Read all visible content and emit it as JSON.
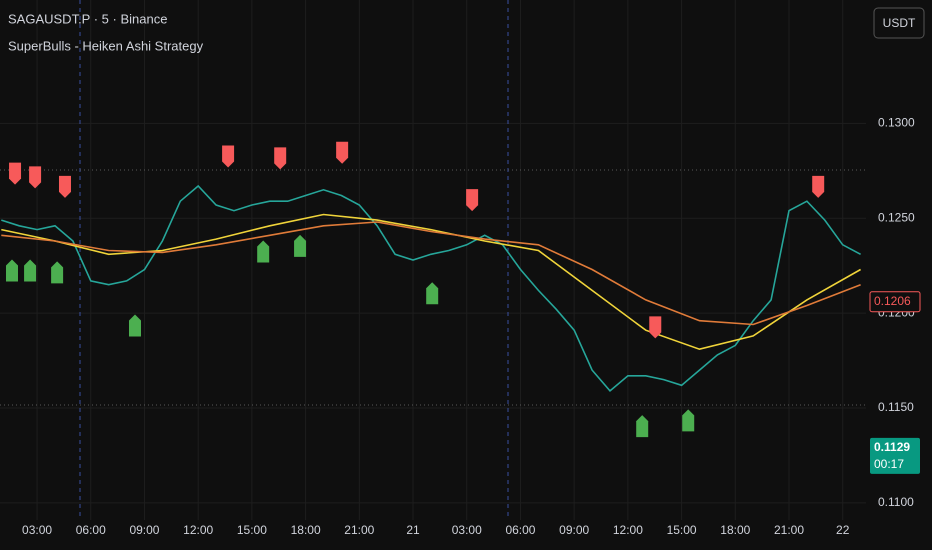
{
  "chart_data": {
    "type": "line",
    "title": "SAGAUSDT.P · 5 · Binance",
    "subtitle": "SuperBulls - Heiken Ashi Strategy",
    "currency_button": "USDT",
    "xlim": [
      0.93,
      49.3
    ],
    "ylim": [
      0.1091,
      0.1365
    ],
    "xticks": [
      {
        "value": 3,
        "label": "03:00"
      },
      {
        "value": 6,
        "label": "06:00"
      },
      {
        "value": 9,
        "label": "09:00"
      },
      {
        "value": 12,
        "label": "12:00"
      },
      {
        "value": 15,
        "label": "15:00"
      },
      {
        "value": 18,
        "label": "18:00"
      },
      {
        "value": 21,
        "label": "21:00"
      },
      {
        "value": 24,
        "label": "21"
      },
      {
        "value": 27,
        "label": "03:00"
      },
      {
        "value": 30,
        "label": "06:00"
      },
      {
        "value": 33,
        "label": "09:00"
      },
      {
        "value": 36,
        "label": "12:00"
      },
      {
        "value": 39,
        "label": "15:00"
      },
      {
        "value": 42,
        "label": "18:00"
      },
      {
        "value": 45,
        "label": "21:00"
      },
      {
        "value": 48,
        "label": "22"
      }
    ],
    "yticks": [
      {
        "value": 0.11,
        "label": "0.1100"
      },
      {
        "value": 0.115,
        "label": "0.1150"
      },
      {
        "value": 0.12,
        "label": "0.1200"
      },
      {
        "value": 0.125,
        "label": "0.1250"
      },
      {
        "value": 0.13,
        "label": "0.1300"
      }
    ],
    "grid": true,
    "series": [
      {
        "style": "line",
        "color": "#26a69a",
        "x": [
          1,
          2,
          3,
          4,
          5,
          6,
          7,
          8,
          9,
          10,
          11,
          12,
          13,
          14,
          15,
          16,
          17,
          18,
          19,
          20,
          21,
          22,
          23,
          24,
          25,
          26,
          27,
          28,
          29,
          30,
          31,
          32,
          33,
          34,
          35,
          36,
          37,
          38,
          39,
          40,
          41,
          42,
          43,
          44,
          45,
          46,
          47,
          48,
          49
        ],
        "values": [
          0.1249,
          0.1246,
          0.1244,
          0.1246,
          0.1238,
          0.1217,
          0.1215,
          0.1217,
          0.1223,
          0.1238,
          0.1259,
          0.1267,
          0.1257,
          0.1254,
          0.1257,
          0.1259,
          0.1259,
          0.1262,
          0.1265,
          0.1262,
          0.1257,
          0.1246,
          0.1231,
          0.1228,
          0.1231,
          0.1233,
          0.1236,
          0.1241,
          0.1236,
          0.1223,
          0.1212,
          0.1202,
          0.1191,
          0.117,
          0.1159,
          0.1167,
          0.1167,
          0.1165,
          0.1162,
          0.117,
          0.1178,
          0.1183,
          0.1196,
          0.1207,
          0.1254,
          0.1259,
          0.1249,
          0.1236,
          0.1231
        ]
      },
      {
        "style": "line",
        "color": "#f0d43a",
        "x": [
          1,
          4,
          7,
          10,
          13,
          16,
          19,
          22,
          25,
          28,
          31,
          34,
          37,
          40,
          43,
          46,
          49
        ],
        "values": [
          0.1244,
          0.1238,
          0.1231,
          0.1233,
          0.1239,
          0.1246,
          0.1252,
          0.1249,
          0.1244,
          0.1238,
          0.1233,
          0.1212,
          0.1191,
          0.1181,
          0.1188,
          0.1207,
          0.1223
        ]
      },
      {
        "style": "line",
        "color": "#e07b39",
        "x": [
          1,
          4,
          7,
          10,
          13,
          16,
          19,
          22,
          25,
          28,
          31,
          34,
          37,
          40,
          43,
          46,
          49
        ],
        "values": [
          0.1241,
          0.1238,
          0.1233,
          0.1232,
          0.1236,
          0.1241,
          0.1246,
          0.1248,
          0.1243,
          0.1239,
          0.1236,
          0.1223,
          0.1207,
          0.1196,
          0.1194,
          0.1204,
          0.1215
        ]
      },
      {
        "style": "sell",
        "color": "#f75a5a",
        "x": [
          1.77,
          2.89,
          4.56,
          13.67,
          16.58,
          20.04,
          27.3,
          37.53,
          46.63
        ],
        "values": [
          0.1273,
          0.1271,
          0.1266,
          0.1282,
          0.1281,
          0.1284,
          0.1259,
          0.1192,
          0.1266
        ]
      },
      {
        "style": "buy",
        "color": "#4caf50",
        "x": [
          1.6,
          2.61,
          4.12,
          8.47,
          15.63,
          17.69,
          25.07,
          36.8,
          39.37
        ],
        "values": [
          0.1223,
          0.1223,
          0.1222,
          0.1194,
          0.1233,
          0.1236,
          0.1211,
          0.1141,
          0.1144
        ]
      }
    ],
    "price_labels": [
      {
        "value": 0.1206,
        "color": "#f75a5a",
        "style": "outline"
      },
      {
        "value": 0.1129,
        "color": "#089981",
        "style": "filled",
        "countdown": "00:17"
      }
    ]
  }
}
